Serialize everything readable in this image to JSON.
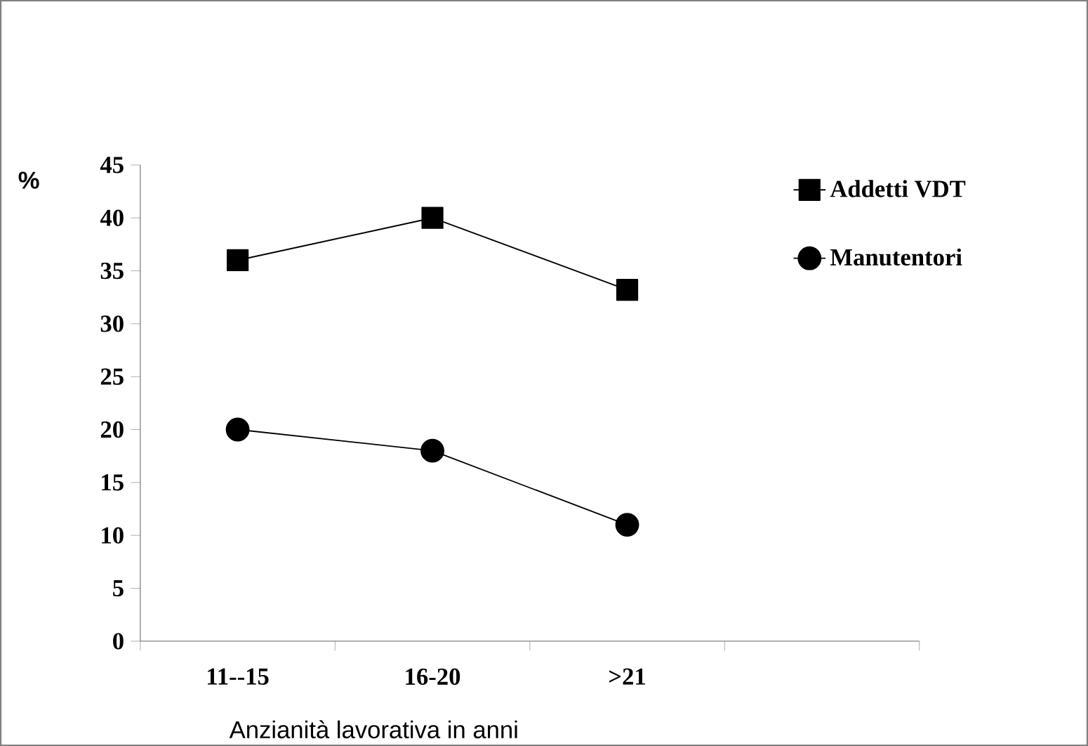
{
  "chart_data": {
    "type": "line",
    "ylabel": "%",
    "xlabel": "Anzianità lavorativa in anni",
    "categories": [
      "11--15",
      "16-20",
      ">21",
      null
    ],
    "ylim": [
      0,
      45
    ],
    "yticks": [
      0,
      5,
      10,
      15,
      20,
      25,
      30,
      35,
      40,
      45
    ],
    "legend": "top right",
    "series": [
      {
        "name": "Addetti VDT",
        "color": "#000000",
        "marker": "square",
        "values": [
          36,
          40,
          33.2,
          null
        ]
      },
      {
        "name": "Manutentori",
        "color": "#000000",
        "marker": "circle",
        "values": [
          20,
          18,
          11,
          null
        ]
      }
    ]
  }
}
